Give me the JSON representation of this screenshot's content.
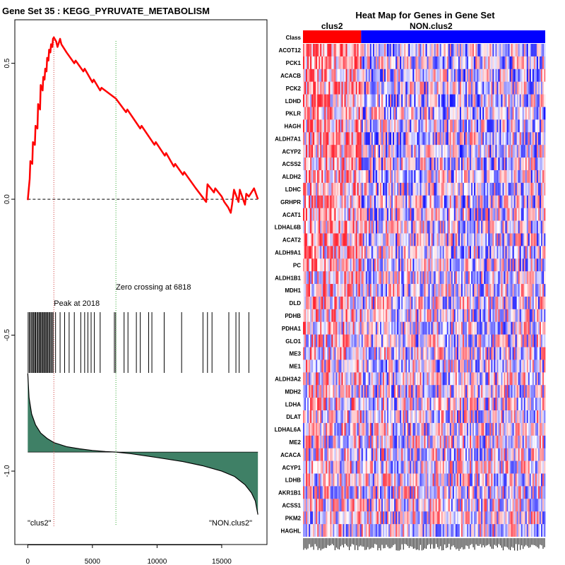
{
  "chart_data": [
    {
      "type": "line",
      "title": "Gene Set  35 : KEGG_PYRUVATE_METABOLISM",
      "xlabel": "",
      "ylabel": "",
      "xlim": [
        -1000,
        18500
      ],
      "ylim": [
        -1.27,
        0.66
      ],
      "x_ticks": [
        0,
        5000,
        10000,
        15000
      ],
      "y_ticks": [
        0.5,
        0.0,
        -0.5,
        -1.0
      ],
      "x_tick_labels": [
        "0",
        "5000",
        "10000",
        "15000"
      ],
      "y_tick_labels": [
        "0.5",
        "0.0",
        "-0.5",
        "-1.0"
      ],
      "colors": {
        "es_line": "#ff0000",
        "peak_line": "#cc3333",
        "zero_line": "#33aa33",
        "metric_fill": "#3f8066"
      },
      "running_es": {
        "name": "Enrichment score",
        "x": [
          0,
          150,
          200,
          350,
          400,
          550,
          600,
          750,
          800,
          950,
          1000,
          1150,
          1200,
          1300,
          1350,
          1450,
          1500,
          1600,
          1650,
          1750,
          1800,
          1900,
          1950,
          2018,
          2200,
          2300,
          2500,
          2600,
          3000,
          3600,
          3700,
          4300,
          4400,
          5000,
          5100,
          5600,
          5700,
          6818,
          7600,
          7700,
          8700,
          8800,
          9800,
          9900,
          10600,
          10700,
          11300,
          11400,
          12000,
          12100,
          13000,
          13800,
          13900,
          14400,
          14500,
          15000,
          15200,
          15500,
          15700,
          15800,
          15950,
          16300,
          16400,
          16800,
          16900,
          17100,
          17500,
          17800
        ],
        "y": [
          -0.003,
          0.075,
          0.14,
          0.13,
          0.21,
          0.2,
          0.27,
          0.26,
          0.35,
          0.33,
          0.42,
          0.4,
          0.45,
          0.44,
          0.48,
          0.47,
          0.52,
          0.51,
          0.55,
          0.54,
          0.57,
          0.56,
          0.59,
          0.595,
          0.58,
          0.56,
          0.59,
          0.57,
          0.54,
          0.5,
          0.51,
          0.47,
          0.48,
          0.43,
          0.44,
          0.4,
          0.41,
          0.37,
          0.32,
          0.33,
          0.26,
          0.27,
          0.2,
          0.21,
          0.16,
          0.17,
          0.12,
          0.13,
          0.09,
          0.1,
          0.04,
          -0.01,
          0.055,
          0.025,
          0.04,
          0.01,
          -0.01,
          -0.03,
          -0.05,
          -0.02,
          0.035,
          -0.01,
          0.035,
          -0.02,
          0.02,
          0.01,
          0.04,
          0.0
        ]
      },
      "hit_positions": [
        30,
        120,
        210,
        300,
        380,
        460,
        540,
        610,
        700,
        780,
        860,
        940,
        1010,
        1090,
        1170,
        1240,
        1320,
        1400,
        1470,
        1550,
        1630,
        1710,
        1790,
        1880,
        1960,
        2150,
        2500,
        2850,
        3200,
        3600,
        4100,
        4400,
        4650,
        4900,
        5150,
        5600,
        6700,
        6800,
        7450,
        7750,
        8400,
        8700,
        9350,
        9600,
        10550,
        11900,
        13550,
        13900,
        14250,
        15550,
        16100,
        16350,
        17100
      ],
      "metric_curve": {
        "x": [
          0,
          100,
          300,
          600,
          1000,
          1500,
          2018,
          3000,
          4000,
          5000,
          6000,
          6818,
          8000,
          10000,
          12000,
          13500,
          15000,
          16000,
          16800,
          17300,
          17600,
          17800
        ],
        "y": [
          -0.64,
          -0.73,
          -0.79,
          -0.83,
          -0.86,
          -0.88,
          -0.895,
          -0.91,
          -0.918,
          -0.924,
          -0.928,
          -0.93,
          -0.936,
          -0.95,
          -0.965,
          -0.98,
          -1.0,
          -1.02,
          -1.05,
          -1.08,
          -1.11,
          -1.16
        ]
      },
      "metric_baseline": -0.93,
      "peak": {
        "x": 2018,
        "label": "Peak at 2018"
      },
      "zero_crossing": {
        "x": 6818,
        "label": "Zero crossing at 6818"
      },
      "left_class_label": "\"clus2\"",
      "right_class_label": "\"NON.clus2\""
    },
    {
      "type": "heatmap",
      "title": "Heat Map for Genes in Gene Set",
      "class_row_label": "Class",
      "classes": [
        {
          "name": "clus2",
          "color": "#ff0000",
          "fraction": 0.24
        },
        {
          "name": "NON.clus2",
          "color": "#0000ff",
          "fraction": 0.76
        }
      ],
      "genes": [
        "ACOT12",
        "PCK1",
        "ACACB",
        "PCK2",
        "LDHD",
        "PKLR",
        "HAGH",
        "ALDH7A1",
        "ACYP2",
        "ACSS2",
        "ALDH2",
        "LDHC",
        "GRHPR",
        "ACAT1",
        "LDHAL6B",
        "ACAT2",
        "ALDH9A1",
        "PC",
        "ALDH1B1",
        "MDH1",
        "DLD",
        "PDHB",
        "PDHA1",
        "GLO1",
        "ME3",
        "ME1",
        "ALDH3A2",
        "MDH2",
        "LDHA",
        "DLAT",
        "LDHAL6A",
        "ME2",
        "ACACA",
        "ACYP1",
        "LDHB",
        "AKR1B1",
        "ACSS1",
        "PKM2",
        "HAGHL"
      ],
      "n_samples": 170,
      "color_scale": [
        "#0000ff",
        "#ffffff",
        "#ff0000"
      ]
    }
  ]
}
